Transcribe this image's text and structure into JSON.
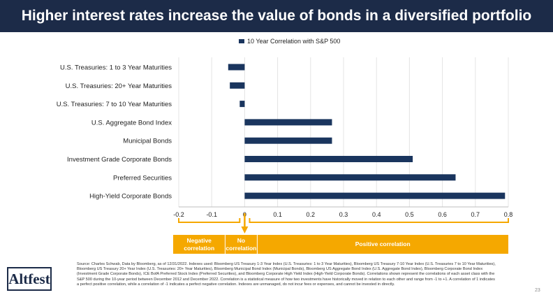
{
  "header": {
    "title": "Higher interest rates increase the value of bonds in a diversified portfolio"
  },
  "legend": {
    "label": "10 Year Correlation with S&P 500"
  },
  "chart_data": {
    "type": "bar",
    "orientation": "horizontal",
    "categories": [
      "U.S. Treasuries: 1 to 3 Year Maturities",
      "U.S. Treasuries: 20+ Year Maturities",
      "U.S. Treasuries: 7 to 10 Year Maturities",
      "U.S. Aggregate Bond Index",
      "Municipal Bonds",
      "Investment Grade Corporate Bonds",
      "Preferred Securities",
      "High-Yield Corporate Bonds"
    ],
    "series": [
      {
        "name": "10 Year Correlation with S&P 500",
        "values": [
          -0.05,
          -0.045,
          -0.015,
          0.265,
          0.265,
          0.51,
          0.64,
          0.79
        ]
      }
    ],
    "xlim": [
      -0.2,
      0.8
    ],
    "xticks": [
      "-0.2",
      "-0.1",
      "0",
      "0.1",
      "0.2",
      "0.3",
      "0.4",
      "0.5",
      "0.6",
      "0.7",
      "0.8"
    ],
    "grid": "vertical",
    "legend_position": "top",
    "bar_color": "#1a355e"
  },
  "annotations": {
    "negative": "Negative correlation",
    "none": "No correlation",
    "positive": "Positive correlation",
    "color": "#f5a800"
  },
  "source": "Source: Charles Schwab, Data by Bloomberg, as of 12/31/2022. Indexes used: Bloomberg US Treasury 1-3 Year Index (U.S. Treasuries: 1 to 3 Year Maturities), Bloomberg US Treasury 7-10 Year Index (U.S. Treasuries 7 to 10 Year Maturities), Bloomberg US Treasury 20+ Year Index (U.S. Treasuries: 20+ Year Maturities), Bloomberg Municipal Bond Index (Municipal Bonds), Bloomberg US Aggregate Bond Index (U.S. Aggregate Bond Index), Bloomberg Corporate Bond Index (Investment Grade Corporate Bonds), ICE BofA Preferred Stock Index (Preferred Securities), and Bloomberg Corporate High Yield Index (High-Yield Corporate Bonds). Correlations shown represent the correlations of each asset class with the S&P 500 during the 10-year period between December 2012 and December 2022. Correlation is a statistical measure of how two investments have historically moved in relation to each other and range from -1 to +1. A correlation of 1 indicates a perfect positive correlation, while a correlation of -1 indicates a perfect negative correlation. Indexes are unmanaged, do not incur fees or expenses, and cannot be invested in directly.",
  "logo": "Altfest",
  "page_number": "23"
}
